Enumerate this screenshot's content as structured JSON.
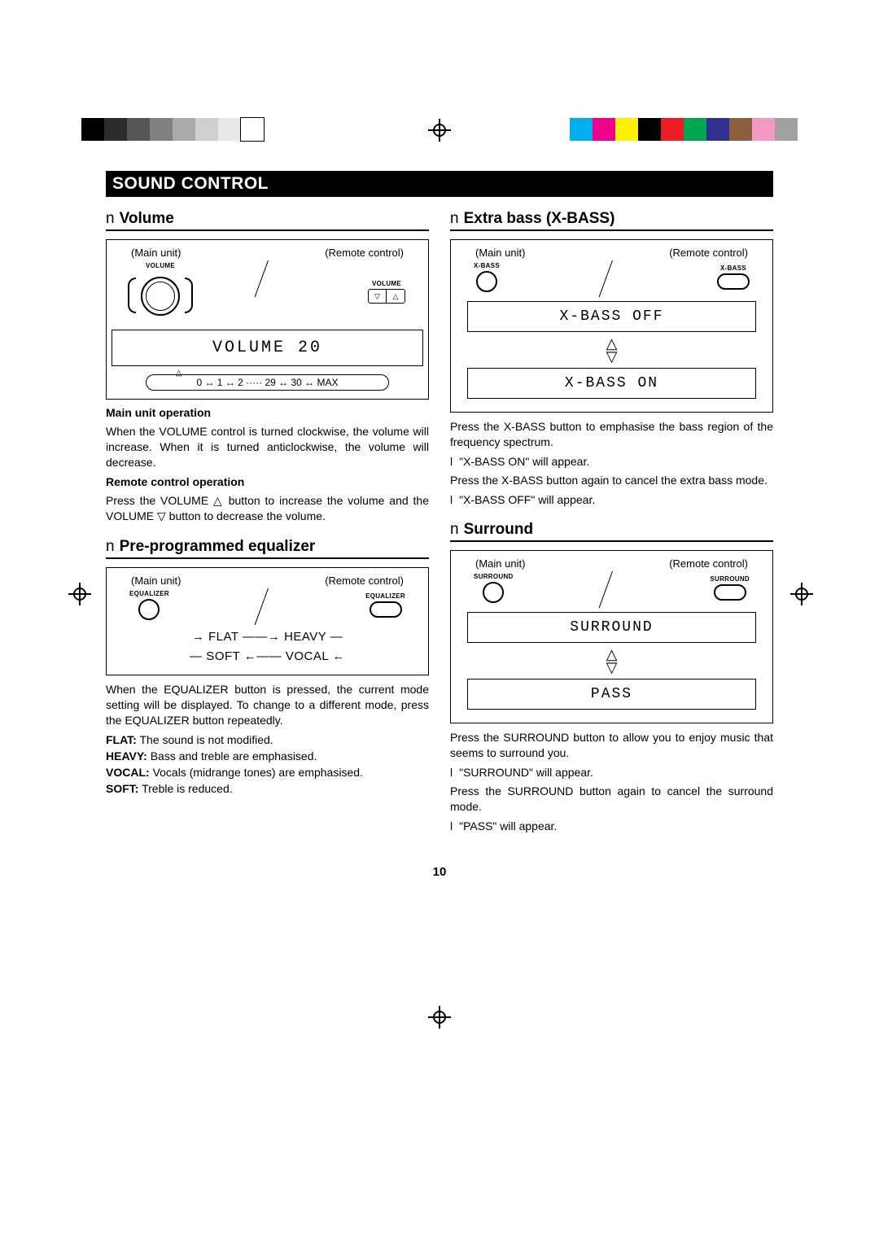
{
  "colorbar": {
    "left": [
      "#000000",
      "#2b2b2b",
      "#555555",
      "#808080",
      "#aaaaaa",
      "#d0d0d0",
      "#e8e8e8",
      "#ffffff"
    ],
    "right": [
      "#00aeef",
      "#ec008c",
      "#fff200",
      "#000000",
      "#ed1c24",
      "#00a651",
      "#2e3192",
      "#8b5e3c",
      "#f49ac1",
      "#a0a0a0"
    ]
  },
  "title": "SOUND CONTROL",
  "n_marker": "n",
  "l_marker": "l",
  "volume": {
    "heading": "Volume",
    "main_unit": "(Main unit)",
    "remote": "(Remote control)",
    "knob_label": "VOLUME",
    "remote_label": "VOLUME",
    "display": "VOLUME 20",
    "range": "0 ↔ 1 ↔ 2 ····· 29 ↔ 30 ↔ MAX",
    "main_op_head": "Main unit operation",
    "main_op": "When the VOLUME control is turned clockwise, the volume will increase. When it is turned anticlockwise, the volume will decrease.",
    "remote_op_head": "Remote control operation",
    "remote_op": "Press the VOLUME △ button to increase the volume and the VOLUME ▽ button to decrease the volume."
  },
  "equalizer": {
    "heading": "Pre-programmed equalizer",
    "main_unit": "(Main unit)",
    "remote": "(Remote control)",
    "main_label": "EQUALIZER",
    "remote_label": "EQUALIZER",
    "cycle_row1": "→ FLAT ——→ HEAVY —",
    "cycle_row2": "— SOFT ←—— VOCAL ←",
    "body": "When the EQUALIZER button is pressed, the current mode setting will be displayed. To change to a different mode, press the EQUALIZER button repeatedly.",
    "flat": "The sound is not modified.",
    "heavy": "Bass and treble are emphasised.",
    "vocal": "Vocals (midrange tones) are emphasised.",
    "soft": "Treble is reduced.",
    "flat_l": "FLAT:",
    "heavy_l": "HEAVY:",
    "vocal_l": "VOCAL:",
    "soft_l": "SOFT:"
  },
  "xbass": {
    "heading": "Extra bass (X-BASS)",
    "main_unit": "(Main unit)",
    "remote": "(Remote control)",
    "main_label": "X-BASS",
    "remote_label": "X-BASS",
    "display_off": "X-BASS OFF",
    "display_on": "X-BASS ON",
    "body1": "Press the X-BASS button to emphasise the bass region of the frequency spectrum.",
    "on_msg": "\"X-BASS ON\" will appear.",
    "body2": "Press the X-BASS button again to cancel the extra bass mode.",
    "off_msg": "\"X-BASS OFF\" will appear."
  },
  "surround": {
    "heading": "Surround",
    "main_unit": "(Main unit)",
    "remote": "(Remote control)",
    "main_label": "SURROUND",
    "remote_label": "SURROUND",
    "display_on": "SURROUND",
    "display_off": "PASS",
    "body1": "Press the SURROUND button to allow you to enjoy music that seems to surround you.",
    "on_msg": "\"SURROUND\" will appear.",
    "body2": "Press the SURROUND button again to cancel the surround mode.",
    "off_msg": "\"PASS\" will appear."
  },
  "page_number": "10"
}
